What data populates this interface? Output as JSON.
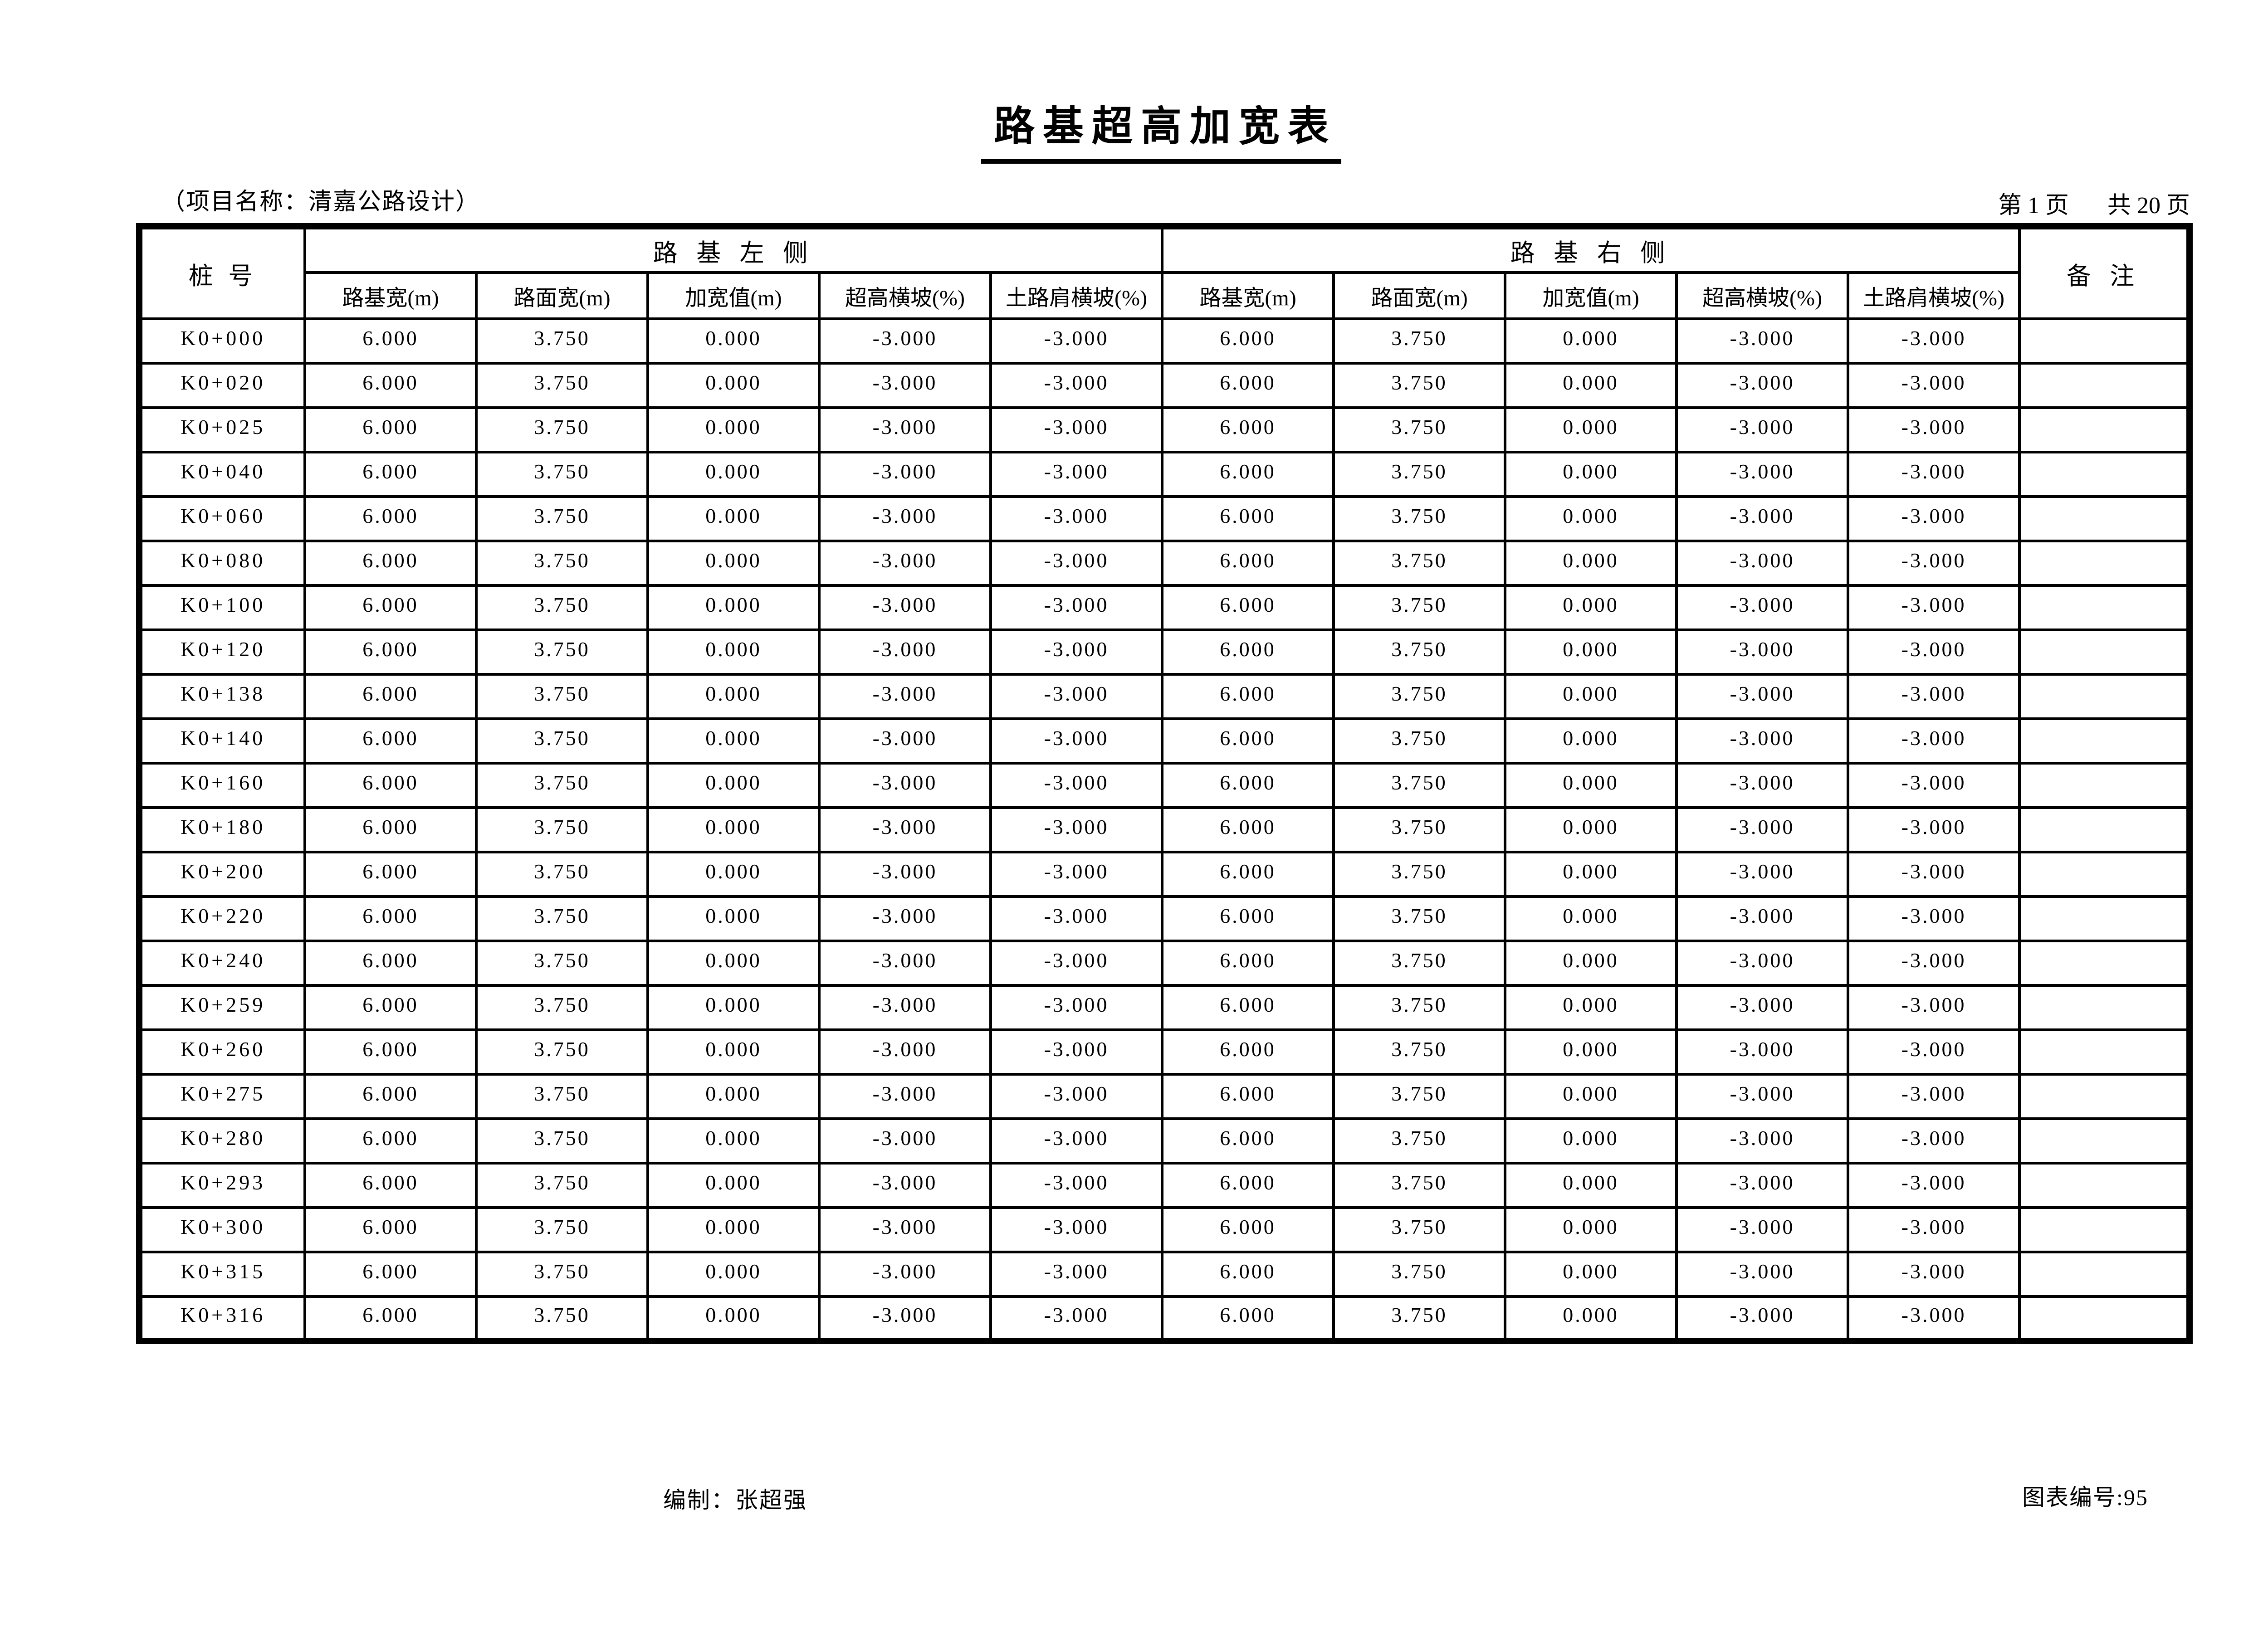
{
  "title": "路基超高加宽表",
  "project_line": "（项目名称：清嘉公路设计）",
  "page_info": {
    "current": "第 1 页",
    "total": "共 20 页"
  },
  "table": {
    "station_header": "桩 号",
    "left_group_header": "路 基 左 侧",
    "right_group_header": "路 基 右 侧",
    "remark_header": "备 注",
    "sub_columns": [
      "路基宽(m)",
      "路面宽(m)",
      "加宽值(m)",
      "超高横坡(%)",
      "土路肩横坡(%)"
    ],
    "rows": [
      {
        "station": "K0+000",
        "left": [
          "6.000",
          "3.750",
          "0.000",
          "-3.000",
          "-3.000"
        ],
        "right": [
          "6.000",
          "3.750",
          "0.000",
          "-3.000",
          "-3.000"
        ],
        "remark": ""
      },
      {
        "station": "K0+020",
        "left": [
          "6.000",
          "3.750",
          "0.000",
          "-3.000",
          "-3.000"
        ],
        "right": [
          "6.000",
          "3.750",
          "0.000",
          "-3.000",
          "-3.000"
        ],
        "remark": ""
      },
      {
        "station": "K0+025",
        "left": [
          "6.000",
          "3.750",
          "0.000",
          "-3.000",
          "-3.000"
        ],
        "right": [
          "6.000",
          "3.750",
          "0.000",
          "-3.000",
          "-3.000"
        ],
        "remark": ""
      },
      {
        "station": "K0+040",
        "left": [
          "6.000",
          "3.750",
          "0.000",
          "-3.000",
          "-3.000"
        ],
        "right": [
          "6.000",
          "3.750",
          "0.000",
          "-3.000",
          "-3.000"
        ],
        "remark": ""
      },
      {
        "station": "K0+060",
        "left": [
          "6.000",
          "3.750",
          "0.000",
          "-3.000",
          "-3.000"
        ],
        "right": [
          "6.000",
          "3.750",
          "0.000",
          "-3.000",
          "-3.000"
        ],
        "remark": ""
      },
      {
        "station": "K0+080",
        "left": [
          "6.000",
          "3.750",
          "0.000",
          "-3.000",
          "-3.000"
        ],
        "right": [
          "6.000",
          "3.750",
          "0.000",
          "-3.000",
          "-3.000"
        ],
        "remark": ""
      },
      {
        "station": "K0+100",
        "left": [
          "6.000",
          "3.750",
          "0.000",
          "-3.000",
          "-3.000"
        ],
        "right": [
          "6.000",
          "3.750",
          "0.000",
          "-3.000",
          "-3.000"
        ],
        "remark": ""
      },
      {
        "station": "K0+120",
        "left": [
          "6.000",
          "3.750",
          "0.000",
          "-3.000",
          "-3.000"
        ],
        "right": [
          "6.000",
          "3.750",
          "0.000",
          "-3.000",
          "-3.000"
        ],
        "remark": ""
      },
      {
        "station": "K0+138",
        "left": [
          "6.000",
          "3.750",
          "0.000",
          "-3.000",
          "-3.000"
        ],
        "right": [
          "6.000",
          "3.750",
          "0.000",
          "-3.000",
          "-3.000"
        ],
        "remark": ""
      },
      {
        "station": "K0+140",
        "left": [
          "6.000",
          "3.750",
          "0.000",
          "-3.000",
          "-3.000"
        ],
        "right": [
          "6.000",
          "3.750",
          "0.000",
          "-3.000",
          "-3.000"
        ],
        "remark": ""
      },
      {
        "station": "K0+160",
        "left": [
          "6.000",
          "3.750",
          "0.000",
          "-3.000",
          "-3.000"
        ],
        "right": [
          "6.000",
          "3.750",
          "0.000",
          "-3.000",
          "-3.000"
        ],
        "remark": ""
      },
      {
        "station": "K0+180",
        "left": [
          "6.000",
          "3.750",
          "0.000",
          "-3.000",
          "-3.000"
        ],
        "right": [
          "6.000",
          "3.750",
          "0.000",
          "-3.000",
          "-3.000"
        ],
        "remark": ""
      },
      {
        "station": "K0+200",
        "left": [
          "6.000",
          "3.750",
          "0.000",
          "-3.000",
          "-3.000"
        ],
        "right": [
          "6.000",
          "3.750",
          "0.000",
          "-3.000",
          "-3.000"
        ],
        "remark": ""
      },
      {
        "station": "K0+220",
        "left": [
          "6.000",
          "3.750",
          "0.000",
          "-3.000",
          "-3.000"
        ],
        "right": [
          "6.000",
          "3.750",
          "0.000",
          "-3.000",
          "-3.000"
        ],
        "remark": ""
      },
      {
        "station": "K0+240",
        "left": [
          "6.000",
          "3.750",
          "0.000",
          "-3.000",
          "-3.000"
        ],
        "right": [
          "6.000",
          "3.750",
          "0.000",
          "-3.000",
          "-3.000"
        ],
        "remark": ""
      },
      {
        "station": "K0+259",
        "left": [
          "6.000",
          "3.750",
          "0.000",
          "-3.000",
          "-3.000"
        ],
        "right": [
          "6.000",
          "3.750",
          "0.000",
          "-3.000",
          "-3.000"
        ],
        "remark": ""
      },
      {
        "station": "K0+260",
        "left": [
          "6.000",
          "3.750",
          "0.000",
          "-3.000",
          "-3.000"
        ],
        "right": [
          "6.000",
          "3.750",
          "0.000",
          "-3.000",
          "-3.000"
        ],
        "remark": ""
      },
      {
        "station": "K0+275",
        "left": [
          "6.000",
          "3.750",
          "0.000",
          "-3.000",
          "-3.000"
        ],
        "right": [
          "6.000",
          "3.750",
          "0.000",
          "-3.000",
          "-3.000"
        ],
        "remark": ""
      },
      {
        "station": "K0+280",
        "left": [
          "6.000",
          "3.750",
          "0.000",
          "-3.000",
          "-3.000"
        ],
        "right": [
          "6.000",
          "3.750",
          "0.000",
          "-3.000",
          "-3.000"
        ],
        "remark": ""
      },
      {
        "station": "K0+293",
        "left": [
          "6.000",
          "3.750",
          "0.000",
          "-3.000",
          "-3.000"
        ],
        "right": [
          "6.000",
          "3.750",
          "0.000",
          "-3.000",
          "-3.000"
        ],
        "remark": ""
      },
      {
        "station": "K0+300",
        "left": [
          "6.000",
          "3.750",
          "0.000",
          "-3.000",
          "-3.000"
        ],
        "right": [
          "6.000",
          "3.750",
          "0.000",
          "-3.000",
          "-3.000"
        ],
        "remark": ""
      },
      {
        "station": "K0+315",
        "left": [
          "6.000",
          "3.750",
          "0.000",
          "-3.000",
          "-3.000"
        ],
        "right": [
          "6.000",
          "3.750",
          "0.000",
          "-3.000",
          "-3.000"
        ],
        "remark": ""
      },
      {
        "station": "K0+316",
        "left": [
          "6.000",
          "3.750",
          "0.000",
          "-3.000",
          "-3.000"
        ],
        "right": [
          "6.000",
          "3.750",
          "0.000",
          "-3.000",
          "-3.000"
        ],
        "remark": ""
      }
    ]
  },
  "footer": {
    "compiler": "编制：张超强",
    "chart_number": "图表编号:95"
  }
}
